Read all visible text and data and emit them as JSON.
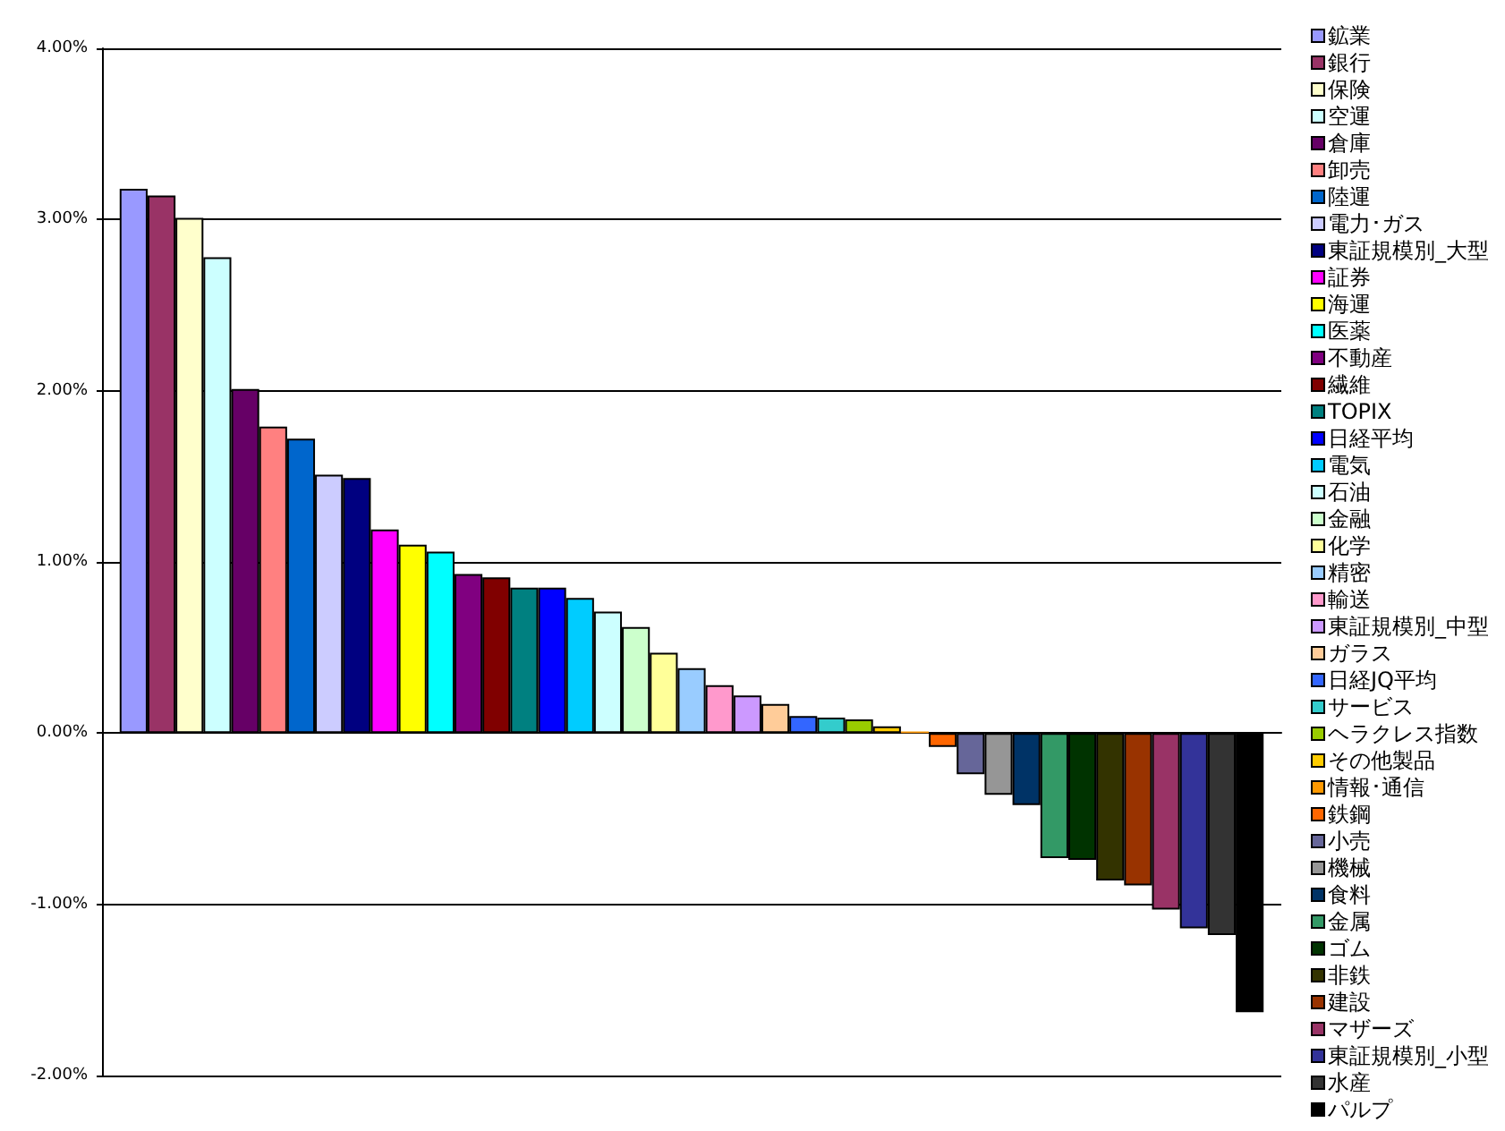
{
  "chart_data": {
    "type": "bar",
    "categories": [
      null
    ],
    "ylim": [
      -2,
      4
    ],
    "yticks": [
      {
        "value": -2,
        "label": "-2.00%"
      },
      {
        "value": -1,
        "label": "-1.00%"
      },
      {
        "value": 0,
        "label": "0.00%"
      },
      {
        "value": 1,
        "label": "1.00%"
      },
      {
        "value": 2,
        "label": "2.00%"
      },
      {
        "value": 3,
        "label": "3.00%"
      },
      {
        "value": 4,
        "label": "4.00%"
      }
    ],
    "grid": "y",
    "legend": "right",
    "series": [
      {
        "name": "鉱業",
        "color": "#9999ff",
        "values": [
          3.18
        ]
      },
      {
        "name": "銀行",
        "color": "#993366",
        "values": [
          3.14
        ]
      },
      {
        "name": "保険",
        "color": "#ffffcc",
        "values": [
          3.01
        ]
      },
      {
        "name": "空運",
        "color": "#ccffff",
        "values": [
          2.78
        ]
      },
      {
        "name": "倉庫",
        "color": "#660066",
        "values": [
          2.01
        ]
      },
      {
        "name": "卸売",
        "color": "#ff8080",
        "values": [
          1.79
        ]
      },
      {
        "name": "陸運",
        "color": "#0066cc",
        "values": [
          1.72
        ]
      },
      {
        "name": "電力･ガス",
        "color": "#ccccff",
        "values": [
          1.51
        ]
      },
      {
        "name": "東証規模別_大型",
        "color": "#000080",
        "values": [
          1.49
        ]
      },
      {
        "name": "証券",
        "color": "#ff00ff",
        "values": [
          1.19
        ]
      },
      {
        "name": "海運",
        "color": "#ffff00",
        "values": [
          1.1
        ]
      },
      {
        "name": "医薬",
        "color": "#00ffff",
        "values": [
          1.06
        ]
      },
      {
        "name": "不動産",
        "color": "#800080",
        "values": [
          0.93
        ]
      },
      {
        "name": "繊維",
        "color": "#800000",
        "values": [
          0.91
        ]
      },
      {
        "name": "TOPIX",
        "color": "#008080",
        "values": [
          0.85
        ]
      },
      {
        "name": "日経平均",
        "color": "#0000ff",
        "values": [
          0.85
        ]
      },
      {
        "name": "電気",
        "color": "#00ccff",
        "values": [
          0.79
        ]
      },
      {
        "name": "石油",
        "color": "#ccffff",
        "values": [
          0.71
        ]
      },
      {
        "name": "金融",
        "color": "#ccffcc",
        "values": [
          0.62
        ]
      },
      {
        "name": "化学",
        "color": "#ffff99",
        "values": [
          0.47
        ]
      },
      {
        "name": "精密",
        "color": "#99ccff",
        "values": [
          0.38
        ]
      },
      {
        "name": "輸送",
        "color": "#ff99cc",
        "values": [
          0.28
        ]
      },
      {
        "name": "東証規模別_中型",
        "color": "#cc99ff",
        "values": [
          0.22
        ]
      },
      {
        "name": "ガラス",
        "color": "#ffcc99",
        "values": [
          0.17
        ]
      },
      {
        "name": "日経JQ平均",
        "color": "#3366ff",
        "values": [
          0.1
        ]
      },
      {
        "name": "サービス",
        "color": "#33cccc",
        "values": [
          0.09
        ]
      },
      {
        "name": "ヘラクレス指数",
        "color": "#99cc00",
        "values": [
          0.08
        ]
      },
      {
        "name": "その他製品",
        "color": "#ffcc00",
        "values": [
          0.04
        ]
      },
      {
        "name": "情報･通信",
        "color": "#ff9900",
        "values": [
          0.01
        ]
      },
      {
        "name": "鉄鋼",
        "color": "#ff6600",
        "values": [
          -0.08
        ]
      },
      {
        "name": "小売",
        "color": "#666699",
        "values": [
          -0.24
        ]
      },
      {
        "name": "機械",
        "color": "#969696",
        "values": [
          -0.36
        ]
      },
      {
        "name": "食料",
        "color": "#003366",
        "values": [
          -0.42
        ]
      },
      {
        "name": "金属",
        "color": "#339966",
        "values": [
          -0.73
        ]
      },
      {
        "name": "ゴム",
        "color": "#003300",
        "values": [
          -0.74
        ]
      },
      {
        "name": "非鉄",
        "color": "#333300",
        "values": [
          -0.86
        ]
      },
      {
        "name": "建設",
        "color": "#993300",
        "values": [
          -0.89
        ]
      },
      {
        "name": "マザーズ",
        "color": "#993366",
        "values": [
          -1.03
        ]
      },
      {
        "name": "東証規模別_小型",
        "color": "#333399",
        "values": [
          -1.14
        ]
      },
      {
        "name": "水産",
        "color": "#333333",
        "values": [
          -1.18
        ]
      },
      {
        "name": "パルプ",
        "color": "#000000",
        "values": [
          -1.63
        ]
      }
    ]
  }
}
